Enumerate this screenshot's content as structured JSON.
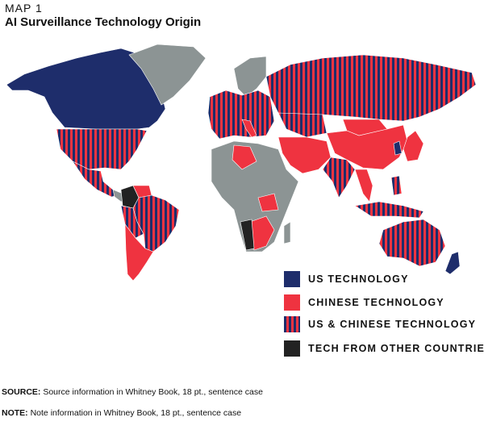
{
  "header": {
    "kicker": "MAP 1",
    "title": "AI Surveillance Technology Origin"
  },
  "legend": [
    {
      "label": "US TECHNOLOGY"
    },
    {
      "label": "CHINESE TECHNOLOGY"
    },
    {
      "label": "US & CHINESE TECHNOLOGY"
    },
    {
      "label": "TECH FROM OTHER COUNTRIES"
    }
  ],
  "footer": {
    "source_label": "SOURCE:",
    "source_text": "Source information in Whitney Book, 18 pt., sentence case",
    "note_label": "NOTE:",
    "note_text": "Note information in Whitney Book, 18 pt., sentence case"
  }
}
